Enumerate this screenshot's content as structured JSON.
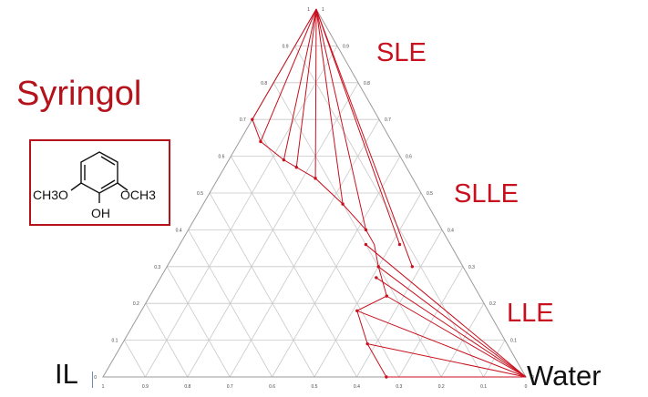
{
  "title": "Syringol",
  "region_labels": {
    "sle": "SLE",
    "slle": "SLLE",
    "lle": "LLE"
  },
  "vertex_labels": {
    "il": "IL",
    "water": "Water",
    "syringol": ""
  },
  "molecule": {
    "substituent_left": "CH3O",
    "substituent_right": "OCH3",
    "substituent_bottom": "OH"
  },
  "colors": {
    "accent": "#c8101e",
    "grid": "#c8c8c8",
    "frame": "#b5121b"
  },
  "chart_data": {
    "type": "scatter",
    "diagram": "ternary phase diagram",
    "axes": {
      "syringol_fraction_ticks": [
        "0",
        "0.1",
        "0.2",
        "0.3",
        "0.4",
        "0.5",
        "0.6",
        "0.7",
        "0.8",
        "0.9",
        "1"
      ],
      "il_fraction_ticks": [
        "1",
        "0.9",
        "0.8",
        "0.7",
        "0.6",
        "0.5",
        "0.4",
        "0.3",
        "0.2",
        "0.1",
        "0"
      ],
      "water_fraction_ticks": [
        "1",
        "0.9",
        "0.8",
        "0.7",
        "0.6",
        "0.5",
        "0.4",
        "0.3",
        "0.2",
        "0.1",
        "0"
      ]
    },
    "grid": true,
    "boundary_curve": [
      {
        "il": 0.3,
        "syringol": 0.7
      },
      {
        "il": 0.31,
        "syringol": 0.64
      },
      {
        "il": 0.28,
        "syringol": 0.59
      },
      {
        "il": 0.26,
        "syringol": 0.57
      },
      {
        "il": 0.23,
        "syringol": 0.54
      },
      {
        "il": 0.2,
        "syringol": 0.47
      },
      {
        "il": 0.18,
        "syringol": 0.4
      },
      {
        "il": 0.18,
        "syringol": 0.36
      },
      {
        "il": 0.2,
        "syringol": 0.3
      },
      {
        "il": 0.22,
        "syringol": 0.22
      },
      {
        "il": 0.31,
        "syringol": 0.18
      },
      {
        "il": 0.33,
        "syringol": 0.09
      },
      {
        "il": 0.33,
        "syringol": 0.0
      }
    ],
    "tie_lines": [
      {
        "region": "SLE",
        "from": {
          "il": 0.0,
          "syringol": 1.0
        },
        "to": {
          "il": 0.3,
          "syringol": 0.7
        }
      },
      {
        "region": "SLE",
        "from": {
          "il": 0.0,
          "syringol": 1.0
        },
        "to": {
          "il": 0.31,
          "syringol": 0.64
        }
      },
      {
        "region": "SLE",
        "from": {
          "il": 0.0,
          "syringol": 1.0
        },
        "to": {
          "il": 0.28,
          "syringol": 0.59
        }
      },
      {
        "region": "SLE",
        "from": {
          "il": 0.0,
          "syringol": 1.0
        },
        "to": {
          "il": 0.26,
          "syringol": 0.57
        }
      },
      {
        "region": "SLE",
        "from": {
          "il": 0.0,
          "syringol": 1.0
        },
        "to": {
          "il": 0.23,
          "syringol": 0.54
        }
      },
      {
        "region": "SLE",
        "from": {
          "il": 0.0,
          "syringol": 1.0
        },
        "to": {
          "il": 0.2,
          "syringol": 0.47
        }
      },
      {
        "region": "SLE",
        "from": {
          "il": 0.0,
          "syringol": 1.0
        },
        "to": {
          "il": 0.18,
          "syringol": 0.4
        }
      },
      {
        "region": "SLE",
        "from": {
          "il": 0.0,
          "syringol": 1.0
        },
        "to": {
          "il": 0.12,
          "syringol": 0.36
        }
      },
      {
        "region": "SLLE",
        "from": {
          "il": 0.0,
          "syringol": 1.0
        },
        "to": {
          "il": 0.12,
          "syringol": 0.3
        }
      },
      {
        "region": "SLLE",
        "from": {
          "il": 0.0,
          "syringol": 0.0
        },
        "to": {
          "il": 0.2,
          "syringol": 0.36
        }
      },
      {
        "region": "SLLE",
        "from": {
          "il": 0.0,
          "syringol": 0.0
        },
        "to": {
          "il": 0.2,
          "syringol": 0.3
        }
      },
      {
        "region": "SLLE",
        "from": {
          "il": 0.0,
          "syringol": 0.0
        },
        "to": {
          "il": 0.22,
          "syringol": 0.27
        }
      },
      {
        "region": "SLLE",
        "from": {
          "il": 0.0,
          "syringol": 0.0
        },
        "to": {
          "il": 0.22,
          "syringol": 0.22
        }
      },
      {
        "region": "LLE",
        "from": {
          "il": 0.0,
          "syringol": 0.0
        },
        "to": {
          "il": 0.31,
          "syringol": 0.18
        }
      },
      {
        "region": "LLE",
        "from": {
          "il": 0.0,
          "syringol": 0.0
        },
        "to": {
          "il": 0.33,
          "syringol": 0.09
        }
      },
      {
        "region": "LLE",
        "from": {
          "il": 0.0,
          "syringol": 0.0
        },
        "to": {
          "il": 0.33,
          "syringol": 0.0
        }
      }
    ]
  }
}
